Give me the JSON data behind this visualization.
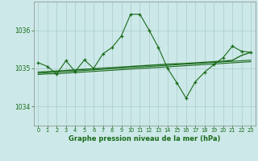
{
  "title": "Graphe pression niveau de la mer (hPa)",
  "bg_color": "#cce8e8",
  "line_color": "#1a6b1a",
  "grid_color": "#aacccc",
  "xlim": [
    -0.5,
    23.5
  ],
  "ylim": [
    1033.5,
    1036.75
  ],
  "yticks": [
    1034,
    1035,
    1036
  ],
  "xticks": [
    0,
    1,
    2,
    3,
    4,
    5,
    6,
    7,
    8,
    9,
    10,
    11,
    12,
    13,
    14,
    15,
    16,
    17,
    18,
    19,
    20,
    21,
    22,
    23
  ],
  "hours": [
    0,
    1,
    2,
    3,
    4,
    5,
    6,
    7,
    8,
    9,
    10,
    11,
    12,
    13,
    14,
    15,
    16,
    17,
    18,
    19,
    20,
    21,
    22,
    23
  ],
  "main_line": [
    1035.15,
    1035.05,
    1034.85,
    1035.2,
    1034.92,
    1035.22,
    1035.0,
    1035.38,
    1035.55,
    1035.85,
    1036.42,
    1036.42,
    1036.0,
    1035.55,
    1035.0,
    1034.62,
    1034.22,
    1034.65,
    1034.9,
    1035.1,
    1035.28,
    1035.58,
    1035.45,
    1035.42
  ],
  "trend1": [
    1034.84,
    1034.855,
    1034.86,
    1034.875,
    1034.89,
    1034.905,
    1034.92,
    1034.935,
    1034.95,
    1034.965,
    1034.98,
    1034.995,
    1035.01,
    1035.025,
    1035.04,
    1035.055,
    1035.07,
    1035.085,
    1035.1,
    1035.115,
    1035.13,
    1035.145,
    1035.16,
    1035.175
  ],
  "trend2": [
    1034.87,
    1034.885,
    1034.9,
    1034.915,
    1034.93,
    1034.945,
    1034.96,
    1034.975,
    1034.99,
    1035.005,
    1035.02,
    1035.035,
    1035.05,
    1035.065,
    1035.08,
    1035.095,
    1035.11,
    1035.125,
    1035.14,
    1035.155,
    1035.17,
    1035.185,
    1035.2,
    1035.215
  ],
  "trend3": [
    1034.9,
    1034.915,
    1034.93,
    1034.945,
    1034.96,
    1034.975,
    1034.99,
    1035.005,
    1035.02,
    1035.035,
    1035.05,
    1035.065,
    1035.08,
    1035.095,
    1035.11,
    1035.12,
    1035.13,
    1035.145,
    1035.16,
    1035.175,
    1035.19,
    1035.21,
    1035.34,
    1035.42
  ]
}
